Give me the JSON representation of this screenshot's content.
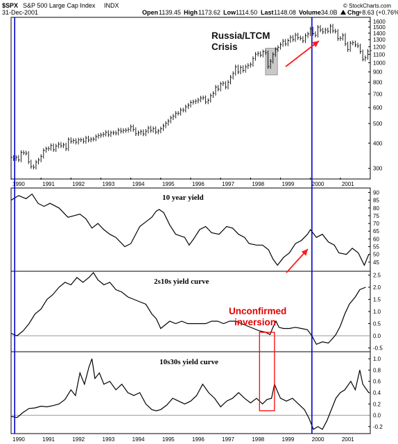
{
  "header": {
    "symbol": "$SPX",
    "name": "S&P 500 Large Cap Index",
    "exchange": "INDX",
    "date": "31-Dec-2001",
    "open_label": "Open",
    "open": "1139.45",
    "high_label": "High",
    "high": "1173.62",
    "low_label": "Low",
    "low": "1114.50",
    "last_label": "Last",
    "last": "1148.08",
    "volume_label": "Volume",
    "volume": "34.0B",
    "chg_label": "Chg",
    "chg": "+8.63 (+0.76%)",
    "chg_icon": "triangle-up-icon",
    "watermark": "© StockCharts.com"
  },
  "annotations": {
    "russia": [
      "Russia/LTCM",
      "Crisis"
    ],
    "inversion": [
      "Unconfirmed",
      "inversion"
    ]
  },
  "colors": {
    "vline": "#0000cc",
    "arrow": "#ff1a1a",
    "box": "#ff0000",
    "shade": "#c8c8c8",
    "price": "#000000",
    "zero_line": "#999999"
  },
  "x_axis": {
    "labels": [
      "1990",
      "1991",
      "1992",
      "1993",
      "1994",
      "1995",
      "1996",
      "1997",
      "1998",
      "1999",
      "2000",
      "2001"
    ],
    "range": [
      1990.0,
      2002.0
    ]
  },
  "chart_data": [
    {
      "type": "bar",
      "title": "",
      "scale": "log",
      "ylim": [
        270,
        1650
      ],
      "y_ticks": [
        300,
        400,
        500,
        600,
        700,
        800,
        900,
        1000,
        1100,
        1200,
        1300,
        1400,
        1500,
        1600
      ],
      "x_start": 1990.0,
      "x_step": 0.08333,
      "close": [
        340,
        335,
        340,
        330,
        360,
        358,
        356,
        323,
        306,
        304,
        322,
        330,
        344,
        368,
        375,
        376,
        389,
        371,
        387,
        395,
        388,
        392,
        375,
        417,
        408,
        412,
        404,
        415,
        415,
        408,
        424,
        414,
        418,
        419,
        431,
        436,
        439,
        443,
        452,
        440,
        450,
        450,
        448,
        464,
        458,
        462,
        463,
        467,
        482,
        467,
        445,
        450,
        456,
        444,
        458,
        475,
        462,
        472,
        454,
        459,
        471,
        487,
        501,
        514,
        533,
        544,
        562,
        562,
        584,
        582,
        605,
        616,
        636,
        640,
        645,
        654,
        669,
        671,
        639,
        651,
        687,
        705,
        757,
        740,
        786,
        791,
        757,
        801,
        848,
        885,
        954,
        899,
        947,
        915,
        955,
        970,
        980,
        1049,
        1101,
        1111,
        1090,
        1133,
        1120,
        957,
        1017,
        1098,
        1164,
        1190,
        1229,
        1279,
        1238,
        1286,
        1335,
        1301,
        1372,
        1328,
        1320,
        1282,
        1362,
        1388,
        1469,
        1394,
        1366,
        1498,
        1452,
        1421,
        1454,
        1430,
        1517,
        1436,
        1429,
        1315,
        1320,
        1366,
        1239,
        1160,
        1249,
        1255,
        1224,
        1211,
        1133,
        1041,
        1060,
        1139,
        1148
      ]
    },
    {
      "type": "line",
      "title": "10 year yield",
      "ylim": [
        40,
        92
      ],
      "y_ticks": [
        45,
        50,
        55,
        60,
        65,
        70,
        75,
        80,
        85,
        90
      ],
      "points": [
        [
          1990.0,
          85
        ],
        [
          1990.25,
          88
        ],
        [
          1990.5,
          86
        ],
        [
          1990.7,
          89
        ],
        [
          1990.9,
          83
        ],
        [
          1991.1,
          81
        ],
        [
          1991.3,
          83
        ],
        [
          1991.6,
          80
        ],
        [
          1991.9,
          74
        ],
        [
          1992.1,
          75
        ],
        [
          1992.3,
          76
        ],
        [
          1992.5,
          73
        ],
        [
          1992.7,
          67
        ],
        [
          1992.9,
          70
        ],
        [
          1993.1,
          66
        ],
        [
          1993.3,
          63
        ],
        [
          1993.5,
          61
        ],
        [
          1993.8,
          55
        ],
        [
          1994.0,
          57
        ],
        [
          1994.3,
          68
        ],
        [
          1994.5,
          71
        ],
        [
          1994.7,
          74
        ],
        [
          1994.85,
          78
        ],
        [
          1994.95,
          79
        ],
        [
          1995.1,
          77
        ],
        [
          1995.3,
          69
        ],
        [
          1995.5,
          63
        ],
        [
          1995.8,
          61
        ],
        [
          1995.95,
          56
        ],
        [
          1996.1,
          60
        ],
        [
          1996.3,
          66
        ],
        [
          1996.5,
          68
        ],
        [
          1996.7,
          64
        ],
        [
          1996.95,
          63
        ],
        [
          1997.2,
          68
        ],
        [
          1997.4,
          67
        ],
        [
          1997.6,
          63
        ],
        [
          1997.8,
          61
        ],
        [
          1997.95,
          57
        ],
        [
          1998.2,
          56
        ],
        [
          1998.4,
          56
        ],
        [
          1998.6,
          53
        ],
        [
          1998.75,
          47
        ],
        [
          1998.9,
          43
        ],
        [
          1999.1,
          48
        ],
        [
          1999.3,
          51
        ],
        [
          1999.5,
          57
        ],
        [
          1999.7,
          59
        ],
        [
          1999.9,
          63
        ],
        [
          2000.0,
          66
        ],
        [
          2000.2,
          61
        ],
        [
          2000.4,
          63
        ],
        [
          2000.6,
          58
        ],
        [
          2000.8,
          56
        ],
        [
          2000.95,
          51
        ],
        [
          2001.2,
          50
        ],
        [
          2001.4,
          54
        ],
        [
          2001.6,
          51
        ],
        [
          2001.8,
          43
        ],
        [
          2001.95,
          50
        ]
      ]
    },
    {
      "type": "line",
      "title": "2s10s yield curve",
      "ylim": [
        -0.6,
        2.6
      ],
      "y_ticks": [
        -0.5,
        0.0,
        0.5,
        1.0,
        1.5,
        2.0,
        2.5
      ],
      "zero_line": true,
      "points": [
        [
          1990.0,
          0.1
        ],
        [
          1990.2,
          0.0
        ],
        [
          1990.4,
          0.2
        ],
        [
          1990.6,
          0.5
        ],
        [
          1990.8,
          0.9
        ],
        [
          1991.0,
          1.1
        ],
        [
          1991.2,
          1.5
        ],
        [
          1991.4,
          1.7
        ],
        [
          1991.6,
          2.0
        ],
        [
          1991.8,
          2.2
        ],
        [
          1992.0,
          2.1
        ],
        [
          1992.2,
          2.4
        ],
        [
          1992.4,
          2.2
        ],
        [
          1992.6,
          2.4
        ],
        [
          1992.75,
          2.6
        ],
        [
          1992.9,
          2.3
        ],
        [
          1993.1,
          2.1
        ],
        [
          1993.3,
          2.2
        ],
        [
          1993.5,
          1.9
        ],
        [
          1993.7,
          1.8
        ],
        [
          1993.9,
          1.6
        ],
        [
          1994.1,
          1.5
        ],
        [
          1994.3,
          1.4
        ],
        [
          1994.5,
          1.3
        ],
        [
          1994.7,
          0.9
        ],
        [
          1994.85,
          0.7
        ],
        [
          1995.0,
          0.3
        ],
        [
          1995.1,
          0.4
        ],
        [
          1995.3,
          0.6
        ],
        [
          1995.5,
          0.5
        ],
        [
          1995.7,
          0.6
        ],
        [
          1995.9,
          0.5
        ],
        [
          1996.1,
          0.5
        ],
        [
          1996.3,
          0.5
        ],
        [
          1996.5,
          0.5
        ],
        [
          1996.7,
          0.6
        ],
        [
          1996.9,
          0.6
        ],
        [
          1997.1,
          0.5
        ],
        [
          1997.3,
          0.6
        ],
        [
          1997.5,
          0.6
        ],
        [
          1997.7,
          0.5
        ],
        [
          1997.9,
          0.4
        ],
        [
          1998.1,
          0.3
        ],
        [
          1998.3,
          0.2
        ],
        [
          1998.5,
          0.15
        ],
        [
          1998.65,
          0.05
        ],
        [
          1998.75,
          0.35
        ],
        [
          1998.85,
          0.6
        ],
        [
          1998.95,
          0.35
        ],
        [
          1999.1,
          0.3
        ],
        [
          1999.3,
          0.3
        ],
        [
          1999.5,
          0.35
        ],
        [
          1999.7,
          0.3
        ],
        [
          1999.9,
          0.25
        ],
        [
          2000.05,
          0.0
        ],
        [
          2000.2,
          -0.35
        ],
        [
          2000.4,
          -0.25
        ],
        [
          2000.6,
          -0.3
        ],
        [
          2000.75,
          -0.1
        ],
        [
          2000.85,
          0.05
        ],
        [
          2001.0,
          0.4
        ],
        [
          2001.15,
          0.9
        ],
        [
          2001.3,
          1.3
        ],
        [
          2001.5,
          1.6
        ],
        [
          2001.65,
          1.9
        ],
        [
          2001.85,
          2.0
        ]
      ]
    },
    {
      "type": "line",
      "title": "10s30s yield curve",
      "ylim": [
        -0.3,
        1.1
      ],
      "y_ticks": [
        -0.2,
        0.0,
        0.2,
        0.4,
        0.6,
        0.8,
        1.0
      ],
      "zero_line": true,
      "points": [
        [
          1990.0,
          -0.02
        ],
        [
          1990.2,
          -0.04
        ],
        [
          1990.4,
          0.05
        ],
        [
          1990.6,
          0.12
        ],
        [
          1990.8,
          0.13
        ],
        [
          1991.0,
          0.16
        ],
        [
          1991.2,
          0.15
        ],
        [
          1991.4,
          0.17
        ],
        [
          1991.6,
          0.2
        ],
        [
          1991.8,
          0.28
        ],
        [
          1992.0,
          0.45
        ],
        [
          1992.15,
          0.35
        ],
        [
          1992.3,
          0.75
        ],
        [
          1992.45,
          0.55
        ],
        [
          1992.6,
          0.85
        ],
        [
          1992.7,
          1.0
        ],
        [
          1992.8,
          0.65
        ],
        [
          1992.95,
          0.75
        ],
        [
          1993.1,
          0.55
        ],
        [
          1993.3,
          0.6
        ],
        [
          1993.5,
          0.45
        ],
        [
          1993.7,
          0.55
        ],
        [
          1993.9,
          0.4
        ],
        [
          1994.1,
          0.35
        ],
        [
          1994.3,
          0.4
        ],
        [
          1994.5,
          0.2
        ],
        [
          1994.7,
          0.1
        ],
        [
          1994.85,
          0.08
        ],
        [
          1995.0,
          0.1
        ],
        [
          1995.2,
          0.18
        ],
        [
          1995.4,
          0.3
        ],
        [
          1995.6,
          0.25
        ],
        [
          1995.8,
          0.2
        ],
        [
          1996.0,
          0.25
        ],
        [
          1996.2,
          0.35
        ],
        [
          1996.4,
          0.55
        ],
        [
          1996.6,
          0.4
        ],
        [
          1996.8,
          0.3
        ],
        [
          1997.0,
          0.15
        ],
        [
          1997.2,
          0.25
        ],
        [
          1997.4,
          0.3
        ],
        [
          1997.6,
          0.4
        ],
        [
          1997.8,
          0.3
        ],
        [
          1998.0,
          0.22
        ],
        [
          1998.2,
          0.3
        ],
        [
          1998.4,
          0.2
        ],
        [
          1998.55,
          0.28
        ],
        [
          1998.7,
          0.3
        ],
        [
          1998.8,
          0.55
        ],
        [
          1998.9,
          0.42
        ],
        [
          1999.0,
          0.3
        ],
        [
          1999.2,
          0.25
        ],
        [
          1999.4,
          0.3
        ],
        [
          1999.6,
          0.2
        ],
        [
          1999.8,
          0.1
        ],
        [
          1999.95,
          -0.05
        ],
        [
          2000.1,
          -0.25
        ],
        [
          2000.25,
          -0.2
        ],
        [
          2000.4,
          -0.25
        ],
        [
          2000.55,
          -0.1
        ],
        [
          2000.7,
          0.1
        ],
        [
          2000.85,
          0.3
        ],
        [
          2001.0,
          0.4
        ],
        [
          2001.15,
          0.45
        ],
        [
          2001.35,
          0.6
        ],
        [
          2001.5,
          0.45
        ],
        [
          2001.65,
          0.8
        ],
        [
          2001.75,
          0.55
        ],
        [
          2001.95,
          0.4
        ]
      ]
    }
  ]
}
